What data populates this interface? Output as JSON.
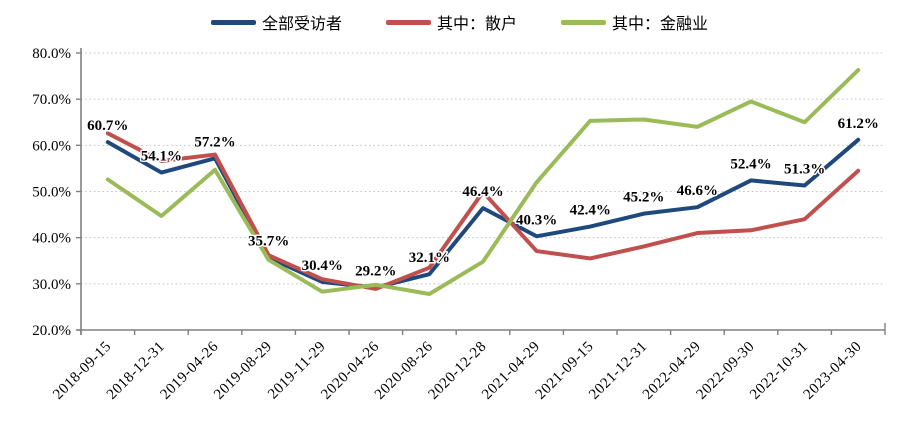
{
  "chart_data": {
    "type": "line",
    "title": "",
    "xlabel": "",
    "ylabel": "",
    "x": [
      "2018-09-15",
      "2018-12-31",
      "2019-04-26",
      "2019-08-29",
      "2019-11-29",
      "2020-04-26",
      "2020-08-26",
      "2020-12-28",
      "2021-04-29",
      "2021-09-15",
      "2021-12-31",
      "2022-04-29",
      "2022-09-30",
      "2022-10-31",
      "2023-04-30"
    ],
    "series": [
      {
        "name": "全部受访者",
        "color": "#1F497D",
        "values": [
          60.7,
          54.1,
          57.2,
          35.7,
          30.4,
          29.2,
          32.1,
          46.4,
          40.3,
          42.4,
          45.2,
          46.6,
          52.4,
          51.3,
          61.2
        ],
        "point_labels": [
          "60.7%",
          "54.1%",
          "57.2%",
          "35.7%",
          "30.4%",
          "29.2%",
          "32.1%",
          "46.4%",
          "40.3%",
          "42.4%",
          "45.2%",
          "46.6%",
          "52.4%",
          "51.3%",
          "61.2%"
        ]
      },
      {
        "name": "其中：散户",
        "color": "#C0504D",
        "values": [
          62.6,
          56.6,
          58.0,
          36.2,
          31.0,
          28.9,
          33.5,
          49.9,
          37.1,
          35.5,
          38.1,
          41.0,
          41.6,
          44.0,
          54.5
        ],
        "point_labels": []
      },
      {
        "name": "其中：金融业",
        "color": "#9BBB59",
        "values": [
          52.6,
          44.7,
          54.7,
          35.2,
          28.3,
          29.8,
          27.8,
          34.8,
          52.0,
          65.3,
          65.6,
          64.0,
          69.5,
          65.0,
          76.3
        ],
        "point_labels": []
      }
    ],
    "ylim": [
      20,
      80
    ],
    "y_tick_step": 10,
    "y_tick_labels": [
      "20.0%",
      "30.0%",
      "40.0%",
      "50.0%",
      "60.0%",
      "70.0%",
      "80.0%"
    ],
    "grid": "horizontal-dotted",
    "legend_position": "top",
    "colors": {
      "axis": "#808080",
      "gridline": "#c3c3c3",
      "tick_text": "#000000"
    }
  }
}
